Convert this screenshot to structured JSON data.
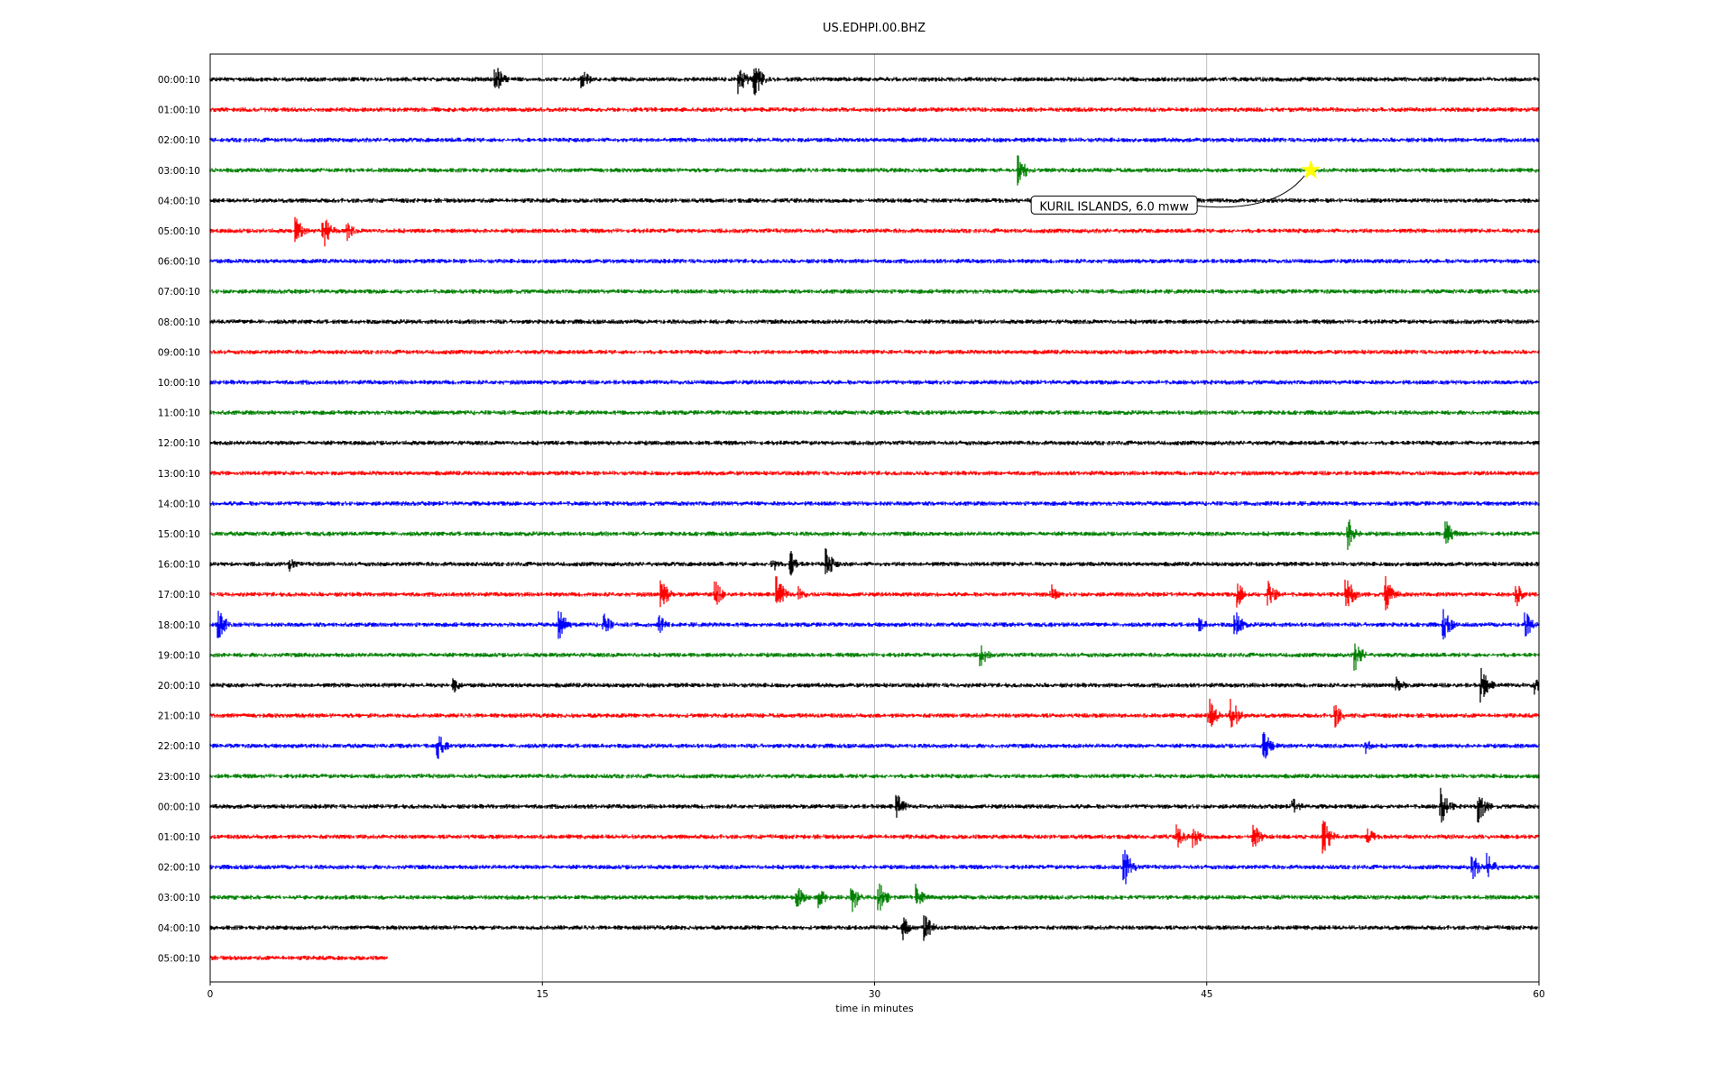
{
  "chart_data": {
    "type": "line",
    "title": "US.EDHPI.00.BHZ",
    "xlabel": "time in minutes",
    "ylabel": "",
    "xlim": [
      0,
      60
    ],
    "x_ticks": [
      "0",
      "15",
      "30",
      "45",
      "60"
    ],
    "grid": "vertical",
    "trace_colors": [
      "#000000",
      "#ff0000",
      "#0000ff",
      "#008000"
    ],
    "rows": [
      "00:00:10",
      "01:00:10",
      "02:00:10",
      "03:00:10",
      "04:00:10",
      "05:00:10",
      "06:00:10",
      "07:00:10",
      "08:00:10",
      "09:00:10",
      "10:00:10",
      "11:00:10",
      "12:00:10",
      "13:00:10",
      "14:00:10",
      "15:00:10",
      "16:00:10",
      "17:00:10",
      "18:00:10",
      "19:00:10",
      "20:00:10",
      "21:00:10",
      "22:00:10",
      "23:00:10",
      "00:00:10",
      "01:00:10",
      "02:00:10",
      "03:00:10",
      "04:00:10",
      "05:00:10"
    ],
    "last_row_end_minute": 8,
    "events": [
      {
        "row": 0,
        "minutes": [
          12.9,
          16.8,
          23.9,
          24.6
        ]
      },
      {
        "row": 3,
        "minutes": [
          36.5
        ]
      },
      {
        "row": 5,
        "minutes": [
          3.9,
          5.1,
          6.2
        ]
      },
      {
        "row": 15,
        "minutes": [
          51.4,
          55.8
        ]
      },
      {
        "row": 16,
        "minutes": [
          3.6,
          25.4,
          26.2,
          27.8
        ]
      },
      {
        "row": 17,
        "minutes": [
          20.4,
          22.8,
          25.6,
          26.6,
          38.0,
          46.4,
          47.8,
          51.3,
          53.1,
          59.0
        ]
      },
      {
        "row": 18,
        "minutes": [
          0.4,
          15.8,
          17.8,
          20.3,
          44.7,
          46.3,
          55.7,
          59.4
        ]
      },
      {
        "row": 19,
        "minutes": [
          34.8,
          51.7
        ]
      },
      {
        "row": 20,
        "minutes": [
          11.0,
          53.6,
          57.4,
          59.8
        ]
      },
      {
        "row": 21,
        "minutes": [
          45.1,
          46.1,
          50.8
        ]
      },
      {
        "row": 22,
        "minutes": [
          10.3,
          47.6,
          52.2
        ]
      },
      {
        "row": 24,
        "minutes": [
          31.0,
          48.9,
          55.6,
          57.3
        ]
      },
      {
        "row": 25,
        "minutes": [
          43.7,
          44.4,
          47.1,
          50.3,
          52.3
        ]
      },
      {
        "row": 26,
        "minutes": [
          41.3,
          57.0,
          57.7
        ]
      },
      {
        "row": 27,
        "minutes": [
          26.5,
          27.5,
          29.0,
          30.2,
          31.9
        ]
      },
      {
        "row": 28,
        "minutes": [
          31.3,
          32.3
        ]
      }
    ],
    "annotation": {
      "text": "KURIL ISLANDS, 6.0 mww",
      "row": 3,
      "minute": 49.7,
      "marker": "star",
      "marker_color": "#ffff00"
    }
  }
}
